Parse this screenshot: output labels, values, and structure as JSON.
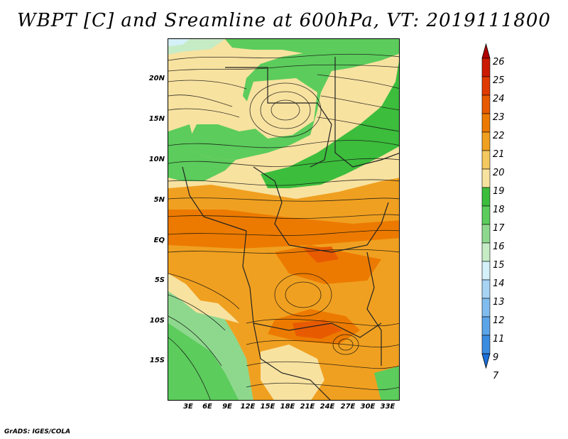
{
  "title": "WBPT [C] and Sreamline at 600hPa, VT: 2019111800",
  "footer": "GrADS: IGES/COLA",
  "map": {
    "lat_labels": [
      "20N",
      "15N",
      "10N",
      "5N",
      "EQ",
      "5S",
      "10S",
      "15S"
    ],
    "lon_labels": [
      "3E",
      "6E",
      "9E",
      "12E",
      "15E",
      "18E",
      "21E",
      "24E",
      "27E",
      "30E",
      "33E"
    ]
  },
  "colorbar": {
    "levels": [
      "26",
      "25",
      "24",
      "23",
      "22",
      "21",
      "20",
      "19",
      "18",
      "17",
      "16",
      "15",
      "14",
      "13",
      "12",
      "11",
      "9",
      "7"
    ],
    "colors": [
      "#b00000",
      "#cc1a00",
      "#e03a00",
      "#e85a00",
      "#ec7a00",
      "#f0a020",
      "#f4c860",
      "#f8e2a0",
      "#3cbd3c",
      "#5ccc5c",
      "#8ed88e",
      "#c6ecc6",
      "#d4f0f8",
      "#a8d4f4",
      "#80bcee",
      "#5ca4e8",
      "#3a8ce0",
      "#1a70d8"
    ]
  }
}
